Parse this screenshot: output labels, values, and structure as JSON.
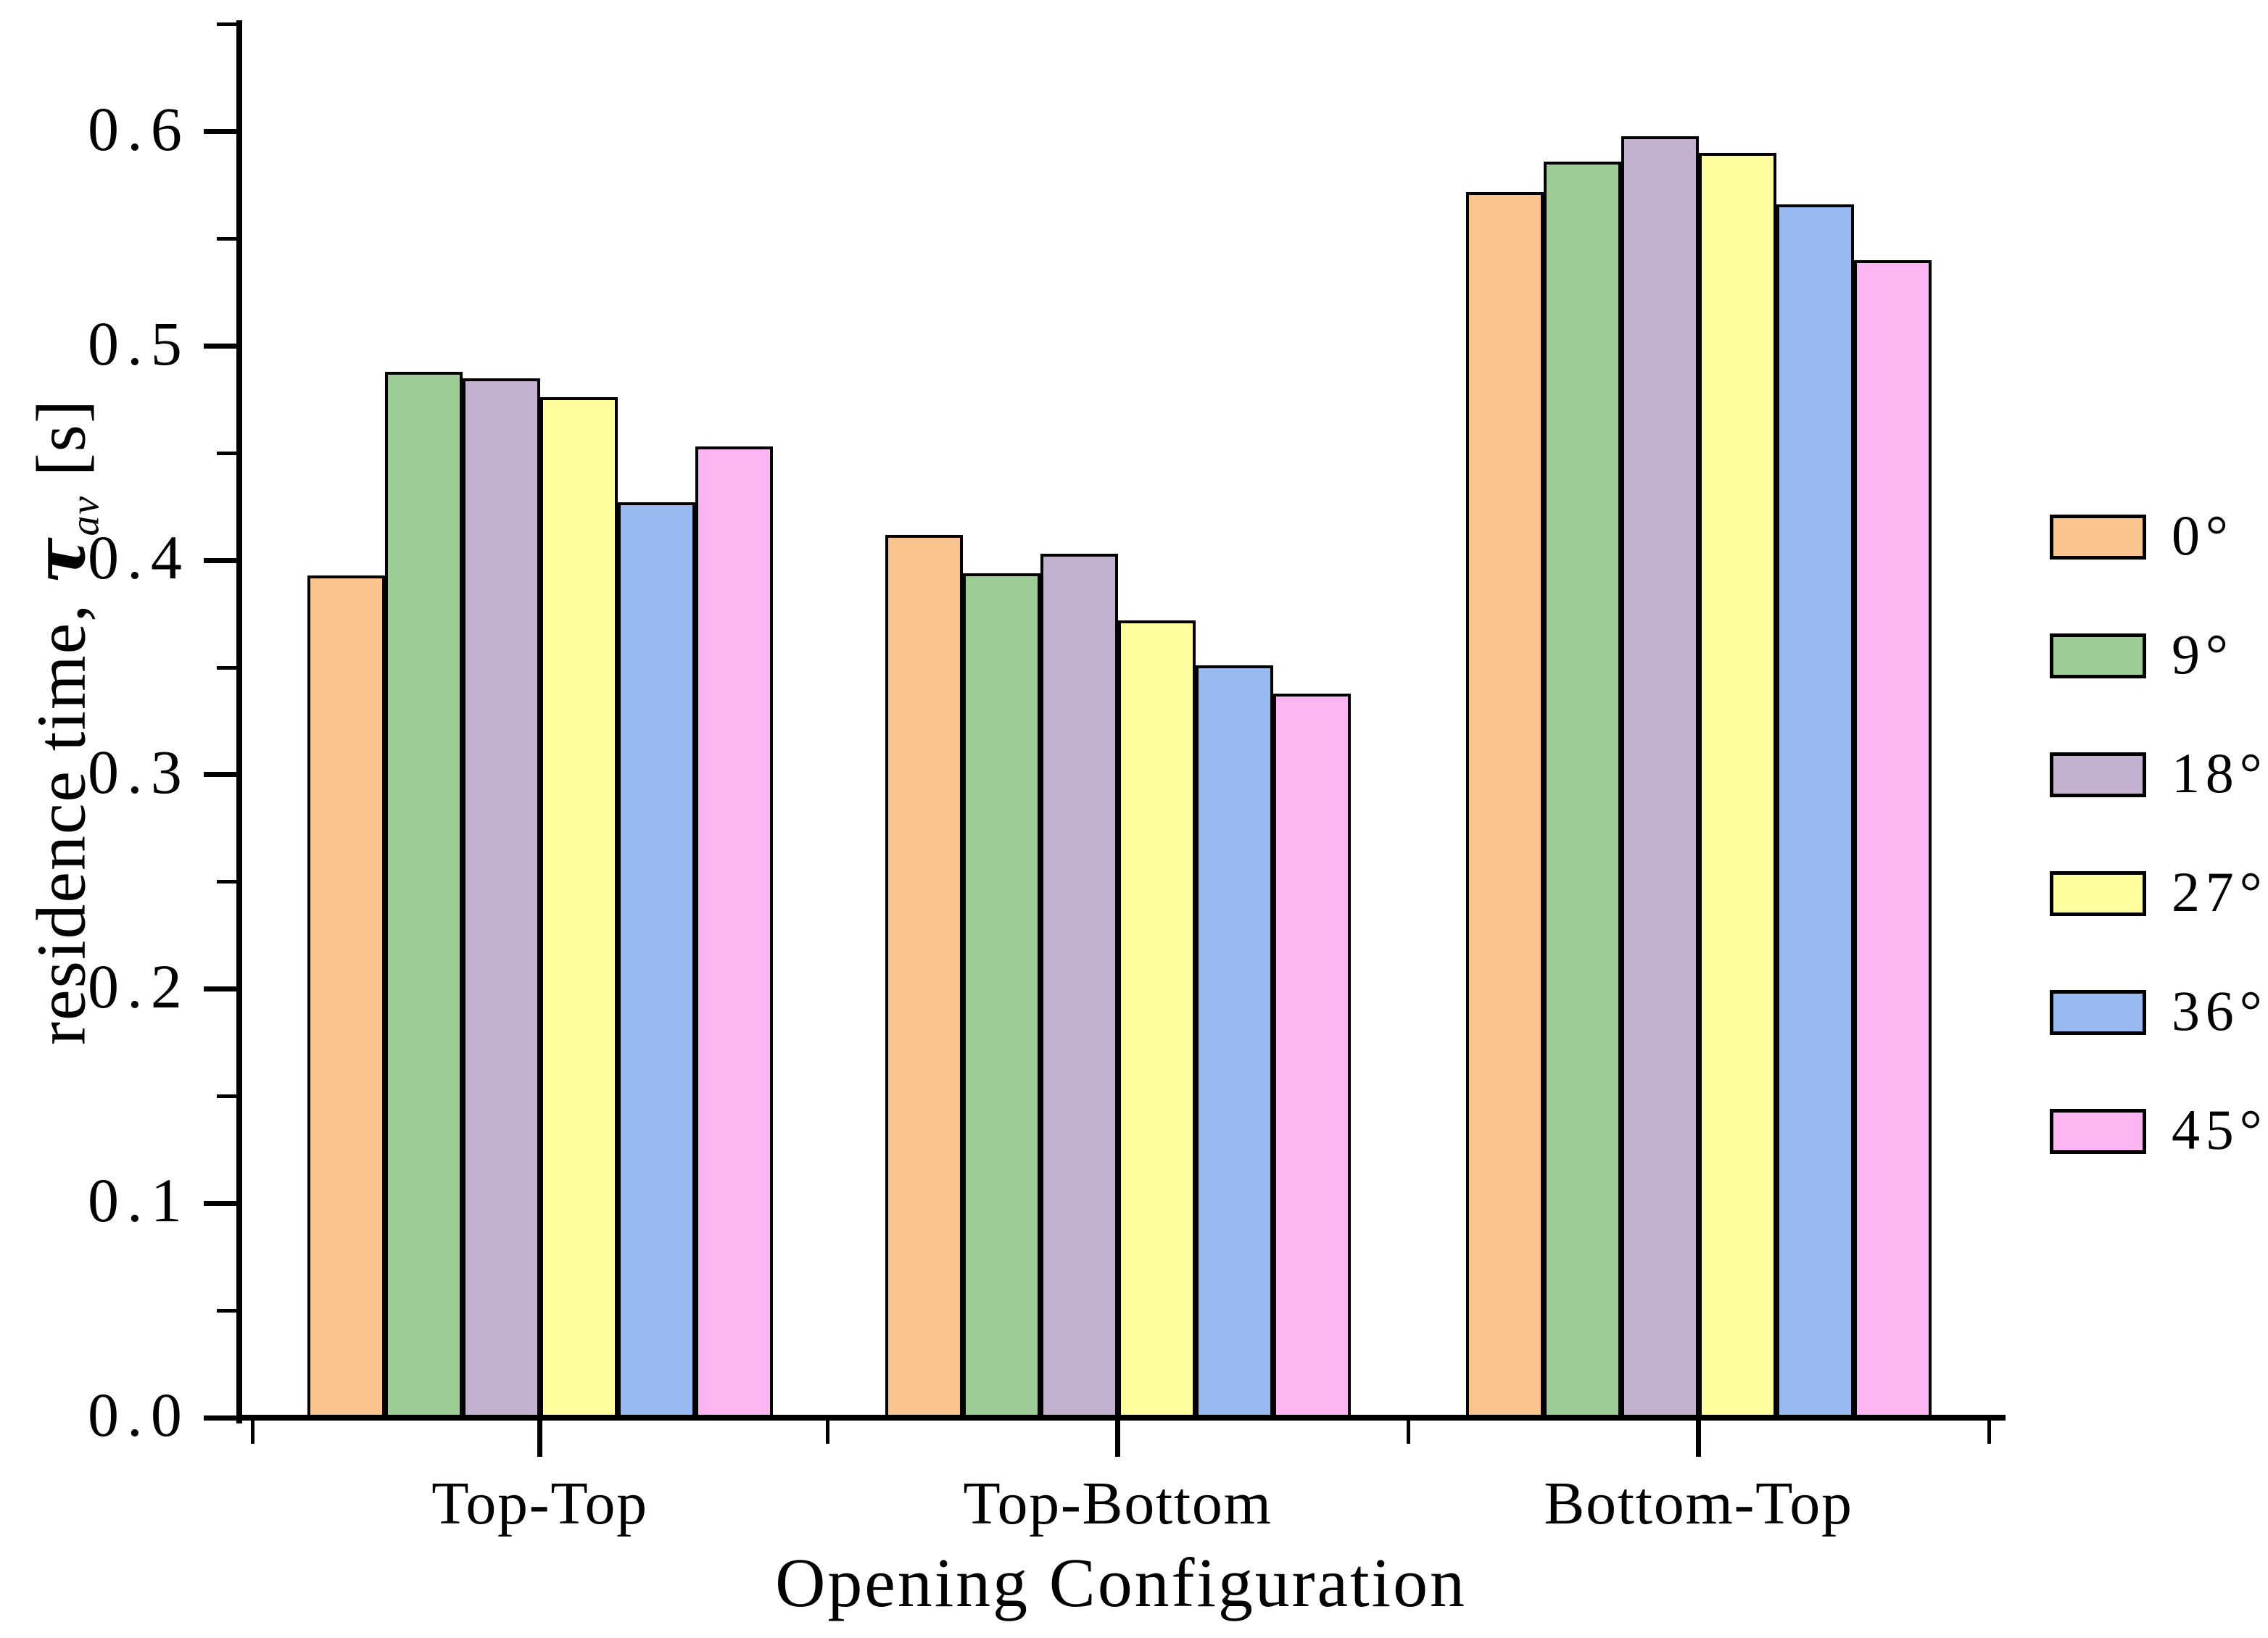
{
  "chart_data": {
    "type": "bar",
    "title": "",
    "xlabel": "Opening Configuration",
    "ylabel": {
      "prefix": "residence time, ",
      "symbol": "τ",
      "subscript": "av",
      "suffix": " [s]"
    },
    "categories": [
      "Top-Top",
      "Top-Bottom",
      "Bottom-Top"
    ],
    "series": [
      {
        "name": "0°",
        "color": "#FAC48E",
        "values": [
          0.393,
          0.412,
          0.572
        ]
      },
      {
        "name": "9°",
        "color": "#9BCD95",
        "values": [
          0.488,
          0.394,
          0.586
        ]
      },
      {
        "name": "18°",
        "color": "#C3B1D0",
        "values": [
          0.485,
          0.403,
          0.598
        ]
      },
      {
        "name": "27°",
        "color": "#FFFE9E",
        "values": [
          0.476,
          0.372,
          0.59
        ]
      },
      {
        "name": "36°",
        "color": "#97BBF0",
        "values": [
          0.427,
          0.351,
          0.566
        ]
      },
      {
        "name": "45°",
        "color": "#FBB6F2",
        "values": [
          0.453,
          0.338,
          0.54
        ]
      }
    ],
    "ylim": [
      0,
      0.65
    ],
    "y_ticks": [
      0.0,
      0.1,
      0.2,
      0.3,
      0.4,
      0.5,
      0.6
    ],
    "y_tick_labels": [
      "0.0",
      "0.1",
      "0.2",
      "0.3",
      "0.4",
      "0.5",
      "0.6"
    ],
    "y_minor_ticks": [
      0.05,
      0.15,
      0.25,
      0.35,
      0.45,
      0.55,
      0.65
    ],
    "grid": false,
    "legend_position": "right",
    "bar_edge_color": "#000000",
    "axis_color": "#000000"
  }
}
